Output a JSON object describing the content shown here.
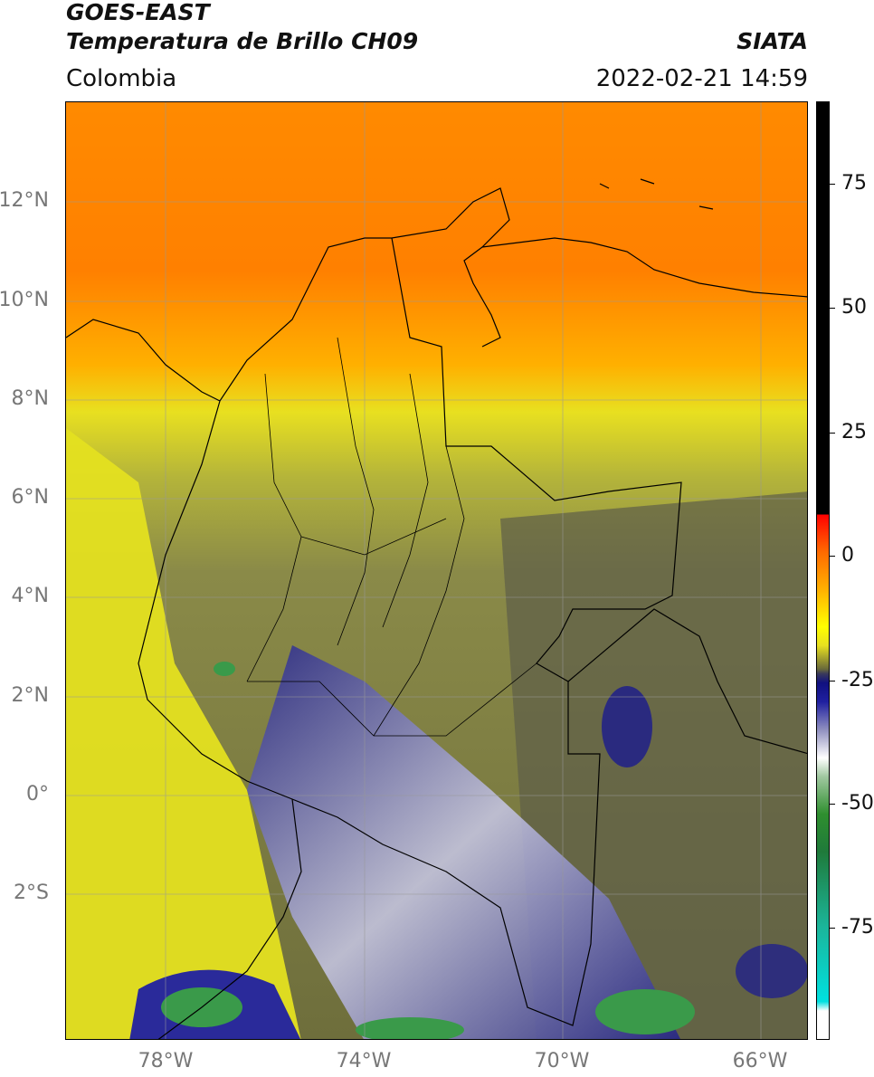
{
  "header": {
    "title_line1": "GOES-EAST",
    "title_line2": "Temperatura de Brillo CH09",
    "agency": "SIATA",
    "region": "Colombia",
    "datetime": "2022-02-21 14:59"
  },
  "axes": {
    "lat_labels": [
      "12°N",
      "10°N",
      "8°N",
      "6°N",
      "4°N",
      "2°N",
      "0°",
      "2°S"
    ],
    "lon_labels": [
      "78°W",
      "74°W",
      "70°W",
      "66°W"
    ]
  },
  "colorbar": {
    "ticks": [
      "75",
      "50",
      "25",
      "0",
      "-25",
      "-50",
      "-75"
    ],
    "range": [
      -95,
      90
    ]
  },
  "colors": {
    "warm": "#ff7a00",
    "mid": "#e6e600",
    "olive": "#6e6e3c",
    "cold": "#1a1a8c",
    "coldest": "#3a9a4a"
  }
}
